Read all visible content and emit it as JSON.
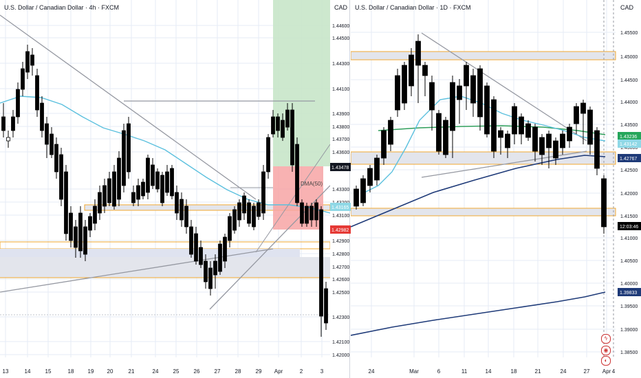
{
  "left_chart": {
    "title": "U.S. Dollar / Canadian Dollar · 4h · FXCM",
    "currency": "CAD",
    "ma_label": "DMA(50)",
    "price_ticks": [
      "1.44600",
      "1.44500",
      "1.44300",
      "1.44100",
      "1.43900",
      "1.43800",
      "1.43700",
      "1.43600",
      "1.43300",
      "1.43200",
      "1.43100",
      "1.42900",
      "1.42800",
      "1.42700",
      "1.42600",
      "1.42500",
      "1.42300",
      "1.42100",
      "1.42000"
    ],
    "date_ticks": [
      "13",
      "14",
      "15",
      "18",
      "19",
      "20",
      "21",
      "24",
      "25",
      "26",
      "27",
      "28",
      "29",
      "Apr",
      "2",
      "3"
    ],
    "price_tags": [
      {
        "value": "1.43478",
        "color": "#131722"
      },
      {
        "value": "1.43165",
        "color": "#8fd8e6"
      },
      {
        "value": "1.42982",
        "color": "#e53935"
      }
    ]
  },
  "right_chart": {
    "title": "U.S. Dollar / Canadian Dollar · 1D · FXCM",
    "currency": "CAD",
    "price_ticks": [
      "1.45500",
      "1.45000",
      "1.44500",
      "1.44000",
      "1.43500",
      "1.43000",
      "1.42500",
      "1.42000",
      "1.41500",
      "1.41000",
      "1.40500",
      "1.40000",
      "1.39500",
      "1.39000",
      "1.38500"
    ],
    "date_ticks": [
      "24",
      "Mar",
      "6",
      "11",
      "14",
      "18",
      "21",
      "24",
      "27",
      "Apr",
      "4"
    ],
    "price_tags": [
      {
        "value": "1.43236",
        "color": "#26a65b"
      },
      {
        "value": "1.43142",
        "color": "#8fd8e6"
      },
      {
        "value": "1.42767",
        "color": "#1e3a78"
      },
      {
        "value": "12:03:46",
        "color": "#000000"
      },
      {
        "value": "1.39833",
        "color": "#1e3a78"
      }
    ]
  },
  "colors": {
    "up_body": "#ffffff",
    "down_body": "#000000",
    "grid": "#e6ebf5",
    "sma_teal": "#5bc0de",
    "sma_green": "#2e9e5b",
    "sma_navy": "#1e3a78",
    "zone_fill": "#e3e5ec",
    "zone_border": "#f0a830",
    "trend": "#9598a1",
    "target_green": "#c8e6c9",
    "stop_red": "#f7a4a4"
  },
  "icons": [
    "lightning-icon",
    "alert-icon",
    "event-icon"
  ]
}
